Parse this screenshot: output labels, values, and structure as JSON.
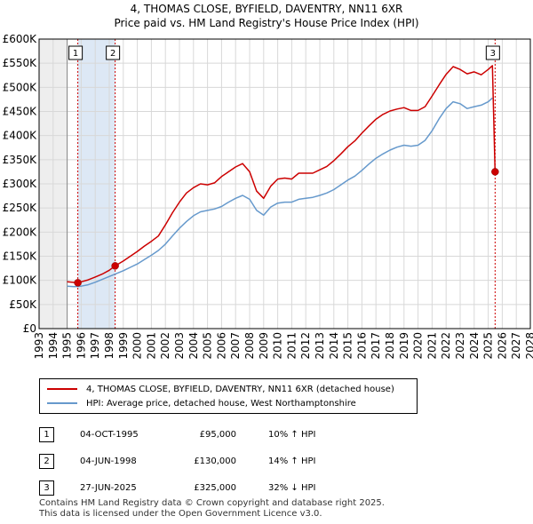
{
  "title_line1": "4, THOMAS CLOSE, BYFIELD, DAVENTRY, NN11 6XR",
  "title_line2": "Price paid vs. HM Land Registry's House Price Index (HPI)",
  "colors": {
    "red": "#cc0000",
    "blue": "#6699cc",
    "shade": "#dde8f5",
    "grid": "#d8d8d8"
  },
  "chart_data": {
    "type": "line",
    "xlim": [
      1993,
      2028
    ],
    "ylim": [
      0,
      600000
    ],
    "x_ticks": [
      "1993",
      "1994",
      "1995",
      "1996",
      "1997",
      "1998",
      "1999",
      "2000",
      "2001",
      "2002",
      "2003",
      "2004",
      "2005",
      "2006",
      "2007",
      "2008",
      "2009",
      "2010",
      "2011",
      "2012",
      "2013",
      "2014",
      "2015",
      "2016",
      "2017",
      "2018",
      "2019",
      "2020",
      "2021",
      "2022",
      "2023",
      "2024",
      "2025",
      "2026",
      "2027",
      "2028"
    ],
    "y_ticks": [
      {
        "value": 0,
        "label": "£0"
      },
      {
        "value": 50000,
        "label": "£50K"
      },
      {
        "value": 100000,
        "label": "£100K"
      },
      {
        "value": 150000,
        "label": "£150K"
      },
      {
        "value": 200000,
        "label": "£200K"
      },
      {
        "value": 250000,
        "label": "£250K"
      },
      {
        "value": 300000,
        "label": "£300K"
      },
      {
        "value": 350000,
        "label": "£350K"
      },
      {
        "value": 400000,
        "label": "£400K"
      },
      {
        "value": 450000,
        "label": "£450K"
      },
      {
        "value": 500000,
        "label": "£500K"
      },
      {
        "value": 550000,
        "label": "£550K"
      },
      {
        "value": 600000,
        "label": "£600K"
      }
    ],
    "data_start": 1995.0,
    "shaded_range": [
      1995.76,
      1998.42
    ],
    "series": [
      {
        "name": "4, THOMAS CLOSE, BYFIELD, DAVENTRY, NN11 6XR (detached house)",
        "color": "#cc0000",
        "x": [
          1995.0,
          1995.76,
          1996.0,
          1996.5,
          1997.0,
          1997.5,
          1998.0,
          1998.42,
          1999.0,
          1999.5,
          2000.0,
          2000.5,
          2001.0,
          2001.5,
          2002.0,
          2002.5,
          2003.0,
          2003.5,
          2004.0,
          2004.5,
          2005.0,
          2005.5,
          2006.0,
          2006.5,
          2007.0,
          2007.5,
          2008.0,
          2008.5,
          2009.0,
          2009.5,
          2010.0,
          2010.5,
          2011.0,
          2011.5,
          2012.0,
          2012.5,
          2013.0,
          2013.5,
          2014.0,
          2014.5,
          2015.0,
          2015.5,
          2016.0,
          2016.5,
          2017.0,
          2017.5,
          2018.0,
          2018.5,
          2019.0,
          2019.5,
          2020.0,
          2020.5,
          2021.0,
          2021.5,
          2022.0,
          2022.5,
          2023.0,
          2023.5,
          2024.0,
          2024.5,
          2025.0,
          2025.3,
          2025.49
        ],
        "y": [
          97000,
          95000,
          97000,
          101000,
          107000,
          113000,
          121000,
          130000,
          140000,
          150000,
          160000,
          171000,
          181000,
          192000,
          215000,
          240000,
          262000,
          281000,
          292000,
          300000,
          298000,
          302000,
          315000,
          325000,
          335000,
          342000,
          325000,
          285000,
          270000,
          295000,
          310000,
          312000,
          310000,
          322000,
          322000,
          322000,
          329000,
          336000,
          348000,
          362000,
          377000,
          389000,
          405000,
          420000,
          434000,
          444000,
          451000,
          455000,
          458000,
          452000,
          452000,
          460000,
          482000,
          505000,
          527000,
          543000,
          537000,
          528000,
          532000,
          526000,
          537000,
          545000,
          325000
        ]
      },
      {
        "name": "HPI: Average price, detached house, West Northamptonshire",
        "color": "#6699cc",
        "x": [
          1995.0,
          1995.5,
          1996.0,
          1996.5,
          1997.0,
          1997.5,
          1998.0,
          1998.5,
          1999.0,
          1999.5,
          2000.0,
          2000.5,
          2001.0,
          2001.5,
          2002.0,
          2002.5,
          2003.0,
          2003.5,
          2004.0,
          2004.5,
          2005.0,
          2005.5,
          2006.0,
          2006.5,
          2007.0,
          2007.5,
          2008.0,
          2008.5,
          2009.0,
          2009.5,
          2010.0,
          2010.5,
          2011.0,
          2011.5,
          2012.0,
          2012.5,
          2013.0,
          2013.5,
          2014.0,
          2014.5,
          2015.0,
          2015.5,
          2016.0,
          2016.5,
          2017.0,
          2017.5,
          2018.0,
          2018.5,
          2019.0,
          2019.5,
          2020.0,
          2020.5,
          2021.0,
          2021.5,
          2022.0,
          2022.5,
          2023.0,
          2023.5,
          2024.0,
          2024.5,
          2025.0,
          2025.3
        ],
        "y": [
          88000,
          87000,
          88000,
          91000,
          96000,
          102000,
          108000,
          114000,
          120000,
          127000,
          134000,
          143000,
          152000,
          162000,
          175000,
          192000,
          208000,
          222000,
          234000,
          242000,
          245000,
          248000,
          253000,
          262000,
          270000,
          276000,
          268000,
          245000,
          235000,
          252000,
          260000,
          262000,
          262000,
          268000,
          270000,
          272000,
          276000,
          281000,
          288000,
          298000,
          308000,
          316000,
          328000,
          341000,
          353000,
          362000,
          370000,
          376000,
          380000,
          378000,
          380000,
          390000,
          410000,
          435000,
          456000,
          470000,
          466000,
          456000,
          460000,
          463000,
          470000,
          478000
        ]
      }
    ],
    "sale_points": [
      {
        "marker": "1",
        "x": 1995.76,
        "y": 95000
      },
      {
        "marker": "2",
        "x": 1998.42,
        "y": 130000
      },
      {
        "marker": "3",
        "x": 2025.49,
        "y": 325000
      }
    ],
    "legend_position": "below chart"
  },
  "legend": {
    "red_label": "4, THOMAS CLOSE, BYFIELD, DAVENTRY, NN11 6XR (detached house)",
    "blue_label": "HPI: Average price, detached house, West Northamptonshire"
  },
  "sales": [
    {
      "num": "1",
      "date": "04-OCT-1995",
      "price": "£95,000",
      "hpi": "10% ↑ HPI"
    },
    {
      "num": "2",
      "date": "04-JUN-1998",
      "price": "£130,000",
      "hpi": "14% ↑ HPI"
    },
    {
      "num": "3",
      "date": "27-JUN-2025",
      "price": "£325,000",
      "hpi": "32% ↓ HPI"
    }
  ],
  "footer": {
    "line1": "Contains HM Land Registry data © Crown copyright and database right 2025.",
    "line2": "This data is licensed under the Open Government Licence v3.0."
  }
}
